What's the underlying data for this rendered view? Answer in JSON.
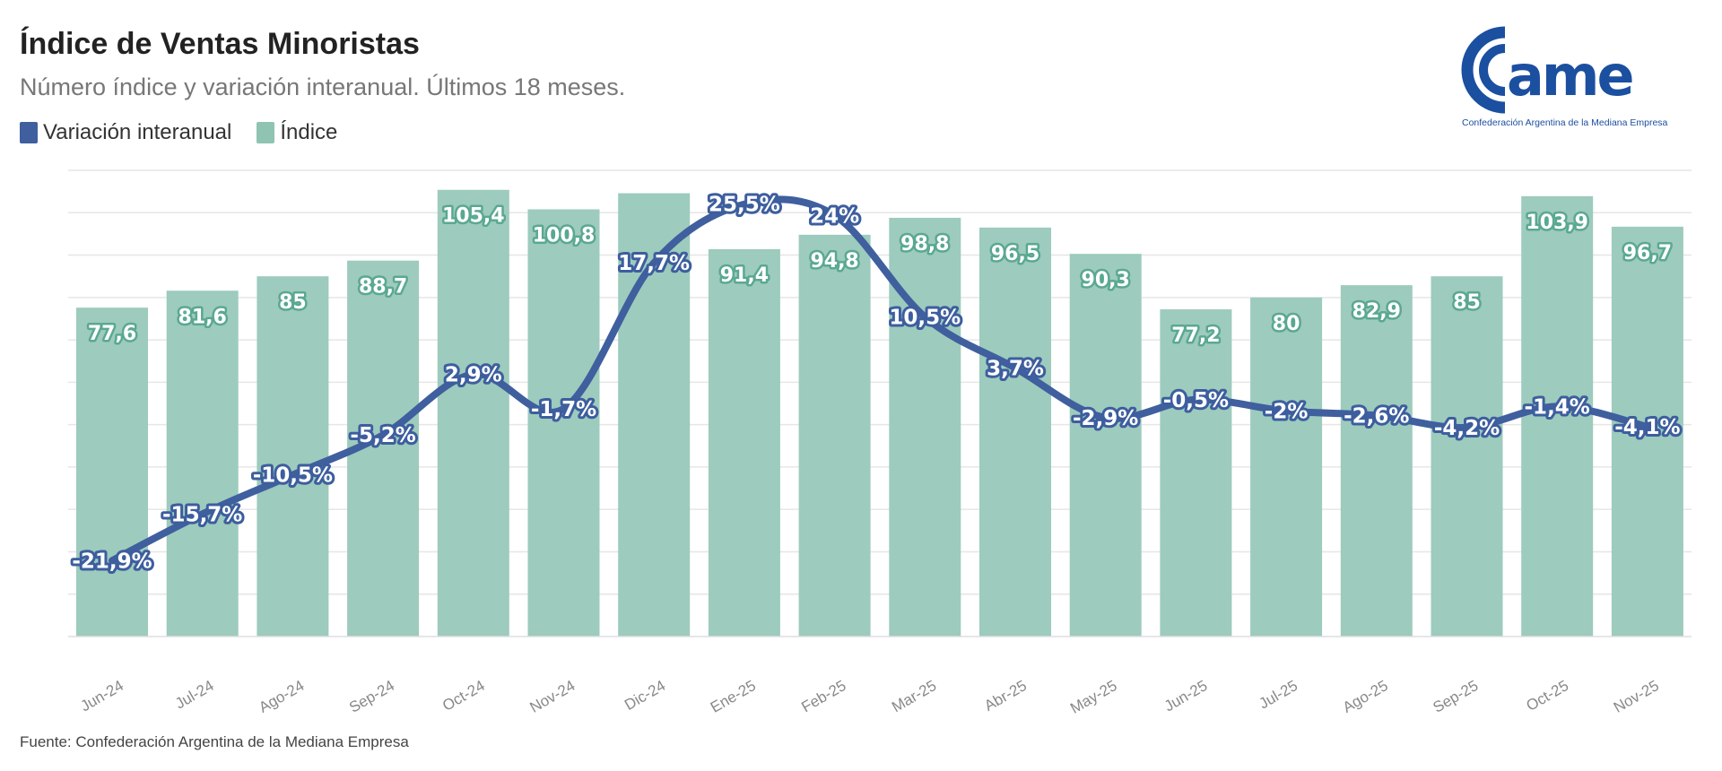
{
  "header": {
    "title": "Índice de Ventas Minoristas",
    "subtitle": "Número índice y variación interanual. Últimos 18 meses.",
    "legend": [
      {
        "label": "Variación interanual",
        "color": "#3f5f9e"
      },
      {
        "label": "Índice",
        "color": "#8fc4b3"
      }
    ]
  },
  "logo": {
    "text": "came",
    "tagline": "Confederación Argentina de la Mediana Empresa",
    "color": "#1b4fa0"
  },
  "source": "Fuente: Confederación Argentina de la Mediana Empresa",
  "chart_data": {
    "type": "bar+line",
    "categories": [
      "Jun-24",
      "Jul-24",
      "Ago-24",
      "Sep-24",
      "Oct-24",
      "Nov-24",
      "Dic-24",
      "Ene-25",
      "Feb-25",
      "Mar-25",
      "Abr-25",
      "May-25",
      "Jun-25",
      "Jul-25",
      "Ago-25",
      "Sep-25",
      "Oct-25",
      "Nov-25"
    ],
    "series": [
      {
        "name": "Índice",
        "type": "bar",
        "color": "#9dcbbd",
        "values": [
          77.6,
          81.6,
          85,
          88.7,
          105.4,
          100.8,
          104.6,
          91.4,
          94.8,
          98.8,
          96.5,
          90.3,
          77.2,
          80,
          82.9,
          85,
          103.9,
          96.7
        ],
        "labels": [
          "77,6",
          "81,6",
          "85",
          "88,7",
          "105,4",
          "100,8",
          null,
          "91,4",
          "94,8",
          "98,8",
          "96,5",
          "90,3",
          "77,2",
          "80",
          "82,9",
          "85",
          "103,9",
          "96,7"
        ]
      },
      {
        "name": "Variación interanual",
        "type": "line",
        "color": "#3f5f9e",
        "values": [
          -21.9,
          -15.7,
          -10.5,
          -5.2,
          2.9,
          -1.7,
          17.7,
          25.5,
          24,
          10.5,
          3.7,
          -2.9,
          -0.5,
          -2,
          -2.6,
          -4.2,
          -1.4,
          -4.1
        ],
        "labels": [
          "-21,9%",
          "-15,7%",
          "-10,5%",
          "-5,2%",
          "2,9%",
          "-1,7%",
          "17,7%",
          "25,5%",
          "24%",
          "10,5%",
          "3,7%",
          "-2,9%",
          "-0,5%",
          "-2%",
          "-2,6%",
          "-4,2%",
          "-1,4%",
          "-4,1%"
        ]
      }
    ],
    "ylim": [
      0,
      110
    ],
    "y2lim": [
      -32,
      30
    ],
    "grid": true,
    "legend": "top-left"
  }
}
